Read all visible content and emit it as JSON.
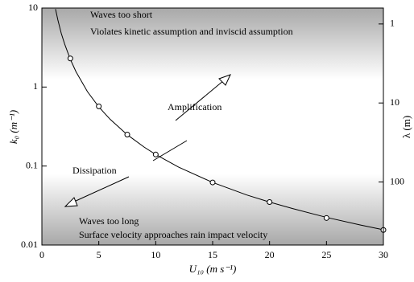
{
  "chart_data": {
    "type": "line",
    "xlabel": "U₁₀ (m s⁻¹)",
    "ylabel": "k₀ (m⁻¹)",
    "y2label": "λ (m)",
    "annotations": [
      "Waves too short",
      "Violates kinetic assumption and inviscid assumption",
      "Amplification",
      "Dissipation",
      "Waves too long",
      "Surface velocity approaches rain impact velocity"
    ],
    "xlim": [
      0,
      30
    ],
    "xticks": [
      0,
      5,
      10,
      15,
      20,
      25,
      30
    ],
    "ylim": [
      0.01,
      10
    ],
    "yticks": [
      0.01,
      0.1,
      1,
      10
    ],
    "yscale": "log",
    "y2lim": [
      628.3,
      0.6283
    ],
    "y2ticks": [
      1,
      10,
      100
    ],
    "y2scale": "log",
    "series": [
      {
        "color": "#000000",
        "marker": false,
        "x": [
          1.2,
          1.4,
          1.7,
          2,
          2.5,
          3,
          4,
          5,
          6,
          7.5,
          9,
          10,
          12,
          15,
          18,
          20,
          22,
          25,
          28,
          30
        ],
        "values": [
          9.7,
          7.1,
          4.8,
          3.5,
          2.24,
          1.56,
          0.875,
          0.56,
          0.39,
          0.249,
          0.173,
          0.14,
          0.097,
          0.062,
          0.043,
          0.035,
          0.029,
          0.0224,
          0.0179,
          0.0156
        ]
      },
      {
        "color": "#000000",
        "marker": true,
        "x": [
          2.5,
          5,
          7.5,
          10,
          15,
          20,
          25,
          30
        ],
        "values": [
          2.3,
          0.57,
          0.25,
          0.14,
          0.062,
          0.035,
          0.022,
          0.0155
        ]
      }
    ]
  }
}
